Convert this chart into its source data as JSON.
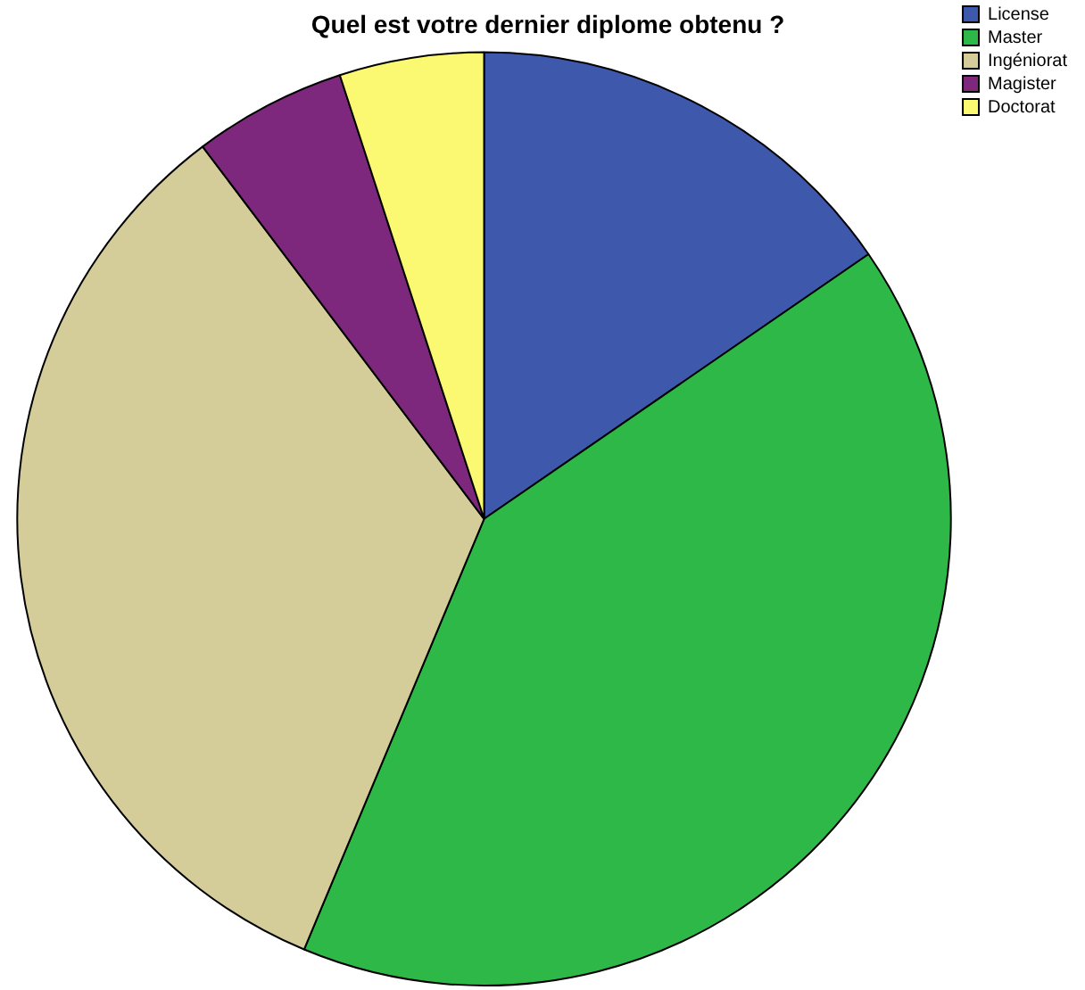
{
  "chart_data": {
    "type": "pie",
    "title": "Quel est votre dernier diplome obtenu ?",
    "categories": [
      "License",
      "Master",
      "Ingéniorat",
      "Magister",
      "Doctorat"
    ],
    "values": [
      15.4,
      40.9,
      33.4,
      5.3,
      5.0
    ],
    "colors": [
      "#3e58ac",
      "#2eb848",
      "#d4cc99",
      "#7d287d",
      "#fbf872"
    ],
    "legend": "top right"
  }
}
